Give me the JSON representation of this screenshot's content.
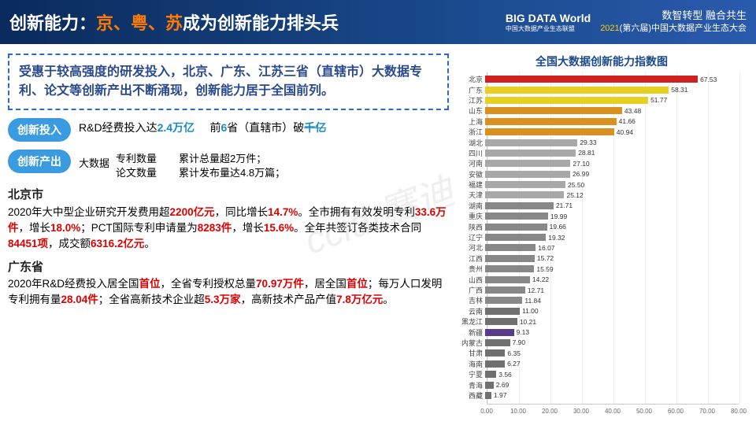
{
  "header": {
    "title_pre": "创新能力：",
    "title_hl": "京、粤、苏",
    "title_post": "成为创新能力排头兵",
    "logo_main": "BIG DATA World",
    "logo_sub": "中国大数据产业生态联盟",
    "conf_main": "数智转型  融合共生",
    "conf_year": "2021",
    "conf_sub": "(第六届)中国大数据产业生态大会"
  },
  "summary": "受惠于较高强度的研发投入，北京、广东、江苏三省（直辖市）大数据专利、论文等创新产出不断涌现，创新能力居于全国前列。",
  "input_row": {
    "pill": "创新投入",
    "t1a": "R&D经费投入达",
    "t1b": "2.4万亿",
    "t2a": "前",
    "t2b": "6",
    "t2c": "省（直辖市）破",
    "t2d": "千亿"
  },
  "output_row": {
    "pill": "创新产出",
    "prefix": "大数据",
    "l1": "专利数量",
    "l2": "论文数量",
    "r1": "累计总量超2万件；",
    "r2": "累计发布量达4.8万篇；"
  },
  "beijing": {
    "name": "北京市",
    "text": "2020年大中型企业研究开发费用超<span class='red'>2200亿元</span>，同比增长<span class='red'>14.7%</span>。全市拥有有效发明专利<span class='red'>33.6万件</span>，增长<span class='red'>18.0%</span>；PCT国际专利申请量为<span class='red'>8283件</span>，增长<span class='red'>15.6%</span>。全年共签订各类技术合同<span class='red'>84451项</span>，成交额<span class='red'>6316.2亿元</span>。"
  },
  "guangdong": {
    "name": "广东省",
    "text": "2020年R&D经费投入居全国<span class='red'>首位</span>，全省专利授权总量<span class='red'>70.97万件</span>，居全国<span class='red'>首位</span>；每万人口发明专利拥有量<span class='red'>28.04件</span>；全省高新技术企业超<span class='red'>5.3万家</span>，高新技术产品产值<span class='red'>7.8万亿元</span>。"
  },
  "chart": {
    "title": "全国大数据创新能力指数图",
    "xmax": 80,
    "xstep": 10,
    "xlabels": [
      "0.00",
      "10.00",
      "20.00",
      "30.00",
      "40.00",
      "50.00",
      "60.00",
      "70.00",
      "80.00"
    ],
    "bars": [
      {
        "label": "北京",
        "value": 67.53,
        "color": "#d02020"
      },
      {
        "label": "广东",
        "value": 58.31,
        "color": "#e8d020"
      },
      {
        "label": "江苏",
        "value": 51.77,
        "color": "#e8d020"
      },
      {
        "label": "山东",
        "value": 43.48,
        "color": "#d89020"
      },
      {
        "label": "上海",
        "value": 41.66,
        "color": "#d89020"
      },
      {
        "label": "浙江",
        "value": 40.94,
        "color": "#d89020"
      },
      {
        "label": "湖北",
        "value": 29.33,
        "color": "#a8a8a8"
      },
      {
        "label": "四川",
        "value": 28.81,
        "color": "#a8a8a8"
      },
      {
        "label": "河南",
        "value": 27.1,
        "color": "#a8a8a8"
      },
      {
        "label": "安徽",
        "value": 26.99,
        "color": "#a8a8a8"
      },
      {
        "label": "福建",
        "value": 25.5,
        "color": "#a8a8a8"
      },
      {
        "label": "天津",
        "value": 25.12,
        "color": "#a8a8a8"
      },
      {
        "label": "湖南",
        "value": 21.71,
        "color": "#888888"
      },
      {
        "label": "重庆",
        "value": 19.99,
        "color": "#888888"
      },
      {
        "label": "陕西",
        "value": 19.66,
        "color": "#888888"
      },
      {
        "label": "辽宁",
        "value": 19.32,
        "color": "#888888"
      },
      {
        "label": "河北",
        "value": 16.07,
        "color": "#888888"
      },
      {
        "label": "江西",
        "value": 15.72,
        "color": "#888888"
      },
      {
        "label": "贵州",
        "value": 15.59,
        "color": "#888888"
      },
      {
        "label": "山西",
        "value": 14.22,
        "color": "#888888"
      },
      {
        "label": "广西",
        "value": 12.71,
        "color": "#888888"
      },
      {
        "label": "吉林",
        "value": 11.84,
        "color": "#888888"
      },
      {
        "label": "云南",
        "value": 11.0,
        "color": "#707070"
      },
      {
        "label": "黑龙江",
        "value": 10.21,
        "color": "#707070"
      },
      {
        "label": "新疆",
        "value": 9.13,
        "color": "#5a3a8a"
      },
      {
        "label": "内蒙古",
        "value": 7.9,
        "color": "#707070"
      },
      {
        "label": "甘肃",
        "value": 6.35,
        "color": "#707070"
      },
      {
        "label": "海南",
        "value": 6.27,
        "color": "#707070"
      },
      {
        "label": "宁夏",
        "value": 3.56,
        "color": "#707070"
      },
      {
        "label": "青海",
        "value": 2.69,
        "color": "#707070"
      },
      {
        "label": "西藏",
        "value": 1.97,
        "color": "#707070"
      }
    ]
  },
  "watermark": "ccid·赛迪"
}
